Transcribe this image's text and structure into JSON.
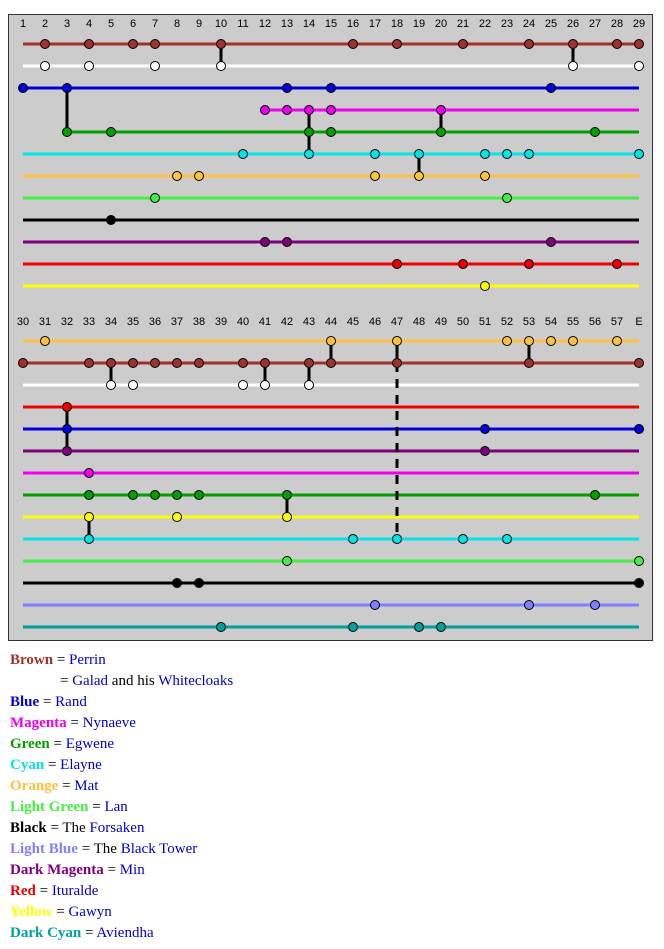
{
  "colors": {
    "Brown": "#a0302a",
    "White": "#ffffff",
    "Blue": "#0000dd",
    "Magenta": "#ee00ee",
    "Green": "#00a000",
    "Cyan": "#00e5e5",
    "Orange": "#ffc040",
    "LightGreen": "#44ee44",
    "Black": "#000000",
    "DarkMagenta": "#800080",
    "Red": "#ee0000",
    "Yellow": "#ffff00",
    "LightBlue": "#7f7fff",
    "DarkCyan": "#00a0a0",
    "Panel": "#cccccc",
    "Link": "#0000cc"
  },
  "panel1": {
    "chapters": [
      "1",
      "2",
      "3",
      "4",
      "5",
      "6",
      "7",
      "8",
      "9",
      "10",
      "11",
      "12",
      "13",
      "14",
      "15",
      "16",
      "17",
      "18",
      "19",
      "20",
      "21",
      "22",
      "23",
      "24",
      "25",
      "26",
      "27",
      "28",
      "29"
    ],
    "tracks": [
      {
        "color": "Brown",
        "points": [
          2,
          4,
          6,
          7,
          10,
          16,
          18,
          21,
          24,
          26,
          28,
          29
        ]
      },
      {
        "color": "White",
        "points": [
          2,
          4,
          7,
          10,
          26,
          29
        ]
      },
      {
        "color": "Blue",
        "start": 1,
        "points": [
          1,
          3,
          13,
          15,
          25
        ]
      },
      {
        "color": "Magenta",
        "start": 12,
        "end": 29,
        "points": [
          12,
          13,
          14,
          15,
          20
        ]
      },
      {
        "color": "Green",
        "start": 3,
        "points": [
          3,
          5,
          14,
          15,
          20,
          27
        ]
      },
      {
        "color": "Cyan",
        "points": [
          11,
          14,
          17,
          19,
          22,
          23,
          24,
          29
        ]
      },
      {
        "color": "Orange",
        "points": [
          8,
          9,
          17,
          19,
          22
        ]
      },
      {
        "color": "LightGreen",
        "points": [
          7,
          23
        ]
      },
      {
        "color": "Black",
        "points": [
          5
        ]
      },
      {
        "color": "DarkMagenta",
        "points": [
          12,
          13,
          25
        ]
      },
      {
        "color": "Red",
        "points": [
          18,
          21,
          24,
          28
        ]
      },
      {
        "color": "Yellow",
        "points": [
          22
        ]
      }
    ],
    "connectors": [
      {
        "chapter": 26,
        "from": 0,
        "to": 1,
        "dashed": false
      },
      {
        "chapter": 10,
        "from": 0,
        "to": 1,
        "dashed": false
      },
      {
        "chapter": 3,
        "from": 2,
        "to": 4,
        "dashed": false
      },
      {
        "chapter": 14,
        "from": 3,
        "to": 5,
        "dashed": false
      },
      {
        "chapter": 20,
        "from": 3,
        "to": 4,
        "dashed": false
      },
      {
        "chapter": 19,
        "from": 5,
        "to": 6,
        "dashed": false
      }
    ]
  },
  "panel2": {
    "chapters": [
      "30",
      "31",
      "32",
      "33",
      "34",
      "35",
      "36",
      "37",
      "38",
      "39",
      "40",
      "41",
      "42",
      "43",
      "44",
      "45",
      "46",
      "47",
      "48",
      "49",
      "50",
      "51",
      "52",
      "53",
      "54",
      "55",
      "56",
      "57",
      "E"
    ],
    "tracks": [
      {
        "color": "Orange",
        "start": 30,
        "points": [
          31,
          44,
          47,
          52,
          53,
          54,
          55,
          57
        ]
      },
      {
        "color": "Brown",
        "start": 30,
        "points": [
          30,
          33,
          34,
          35,
          36,
          37,
          38,
          40,
          41,
          43,
          44,
          47,
          53,
          58
        ]
      },
      {
        "color": "White",
        "start": 30,
        "points": [
          34,
          35,
          40,
          41,
          43
        ]
      },
      {
        "color": "Red",
        "start": 30,
        "points": [
          32
        ]
      },
      {
        "color": "Blue",
        "start": 30,
        "points": [
          32,
          51,
          58
        ]
      },
      {
        "color": "DarkMagenta",
        "start": 30,
        "points": [
          32,
          51
        ]
      },
      {
        "color": "Magenta",
        "start": 30,
        "points": [
          33
        ]
      },
      {
        "color": "Green",
        "start": 30,
        "points": [
          33,
          35,
          36,
          37,
          38,
          42,
          56
        ]
      },
      {
        "color": "Yellow",
        "start": 30,
        "points": [
          33,
          37,
          42
        ]
      },
      {
        "color": "Cyan",
        "start": 30,
        "points": [
          33,
          45,
          47,
          50,
          52
        ]
      },
      {
        "color": "LightGreen",
        "start": 30,
        "points": [
          42,
          58
        ]
      },
      {
        "color": "Black",
        "start": 30,
        "points": [
          37,
          38,
          58
        ]
      },
      {
        "color": "LightBlue",
        "start": 30,
        "points": [
          46,
          53,
          56
        ]
      },
      {
        "color": "DarkCyan",
        "start": 30,
        "points": [
          39,
          45,
          48,
          49
        ]
      }
    ],
    "connectors": [
      {
        "chapter": 34,
        "from": 1,
        "to": 2,
        "dashed": false
      },
      {
        "chapter": 41,
        "from": 1,
        "to": 2,
        "dashed": false
      },
      {
        "chapter": 43,
        "from": 1,
        "to": 2,
        "dashed": false
      },
      {
        "chapter": 44,
        "from": 0,
        "to": 1,
        "dashed": false
      },
      {
        "chapter": 47,
        "from": 0,
        "to": 1,
        "dashed": false
      },
      {
        "chapter": 53,
        "from": 0,
        "to": 1,
        "dashed": false
      },
      {
        "chapter": 47,
        "from": 1,
        "to": 9,
        "dashed": true
      },
      {
        "chapter": 32,
        "from": 3,
        "to": 5,
        "dashed": false
      },
      {
        "chapter": 33,
        "from": 8,
        "to": 9,
        "dashed": false
      },
      {
        "chapter": 42,
        "from": 7,
        "to": 8,
        "dashed": false
      }
    ]
  },
  "legend": [
    {
      "color": "Brown",
      "label": "Brown",
      "eq": " = ",
      "parts": [
        {
          "t": "Perrin",
          "link": true
        }
      ]
    },
    {
      "indent": true,
      "eq": "= ",
      "parts": [
        {
          "t": "Galad",
          "link": true
        },
        {
          "t": " and his ",
          "link": false
        },
        {
          "t": "Whitecloaks",
          "link": true
        }
      ]
    },
    {
      "color": "Blue",
      "label": "Blue",
      "eq": " = ",
      "parts": [
        {
          "t": "Rand",
          "link": true
        }
      ]
    },
    {
      "color": "Magenta",
      "label": "Magenta",
      "eq": " = ",
      "parts": [
        {
          "t": "Nynaeve",
          "link": true
        }
      ]
    },
    {
      "color": "Green",
      "label": "Green",
      "eq": " = ",
      "parts": [
        {
          "t": "Egwene",
          "link": true
        }
      ]
    },
    {
      "color": "Cyan",
      "label": "Cyan",
      "eq": " = ",
      "parts": [
        {
          "t": "Elayne",
          "link": true
        }
      ]
    },
    {
      "color": "Orange",
      "label": "Orange",
      "eq": " = ",
      "parts": [
        {
          "t": "Mat",
          "link": true
        }
      ]
    },
    {
      "color": "LightGreen",
      "label": "Light Green",
      "eq": " = ",
      "parts": [
        {
          "t": "Lan",
          "link": true
        }
      ]
    },
    {
      "color": "Black",
      "label": "Black",
      "eq": " = ",
      "parts": [
        {
          "t": "The ",
          "link": false
        },
        {
          "t": "Forsaken",
          "link": true
        }
      ]
    },
    {
      "color": "LightBlue",
      "label": "Light Blue",
      "eq": " = ",
      "parts": [
        {
          "t": "The ",
          "link": false
        },
        {
          "t": "Black Tower",
          "link": true
        }
      ]
    },
    {
      "color": "DarkMagenta",
      "label": "Dark Magenta",
      "eq": " = ",
      "parts": [
        {
          "t": "Min",
          "link": true
        }
      ]
    },
    {
      "color": "Red",
      "label": "Red",
      "eq": " = ",
      "parts": [
        {
          "t": "Ituralde",
          "link": true
        }
      ]
    },
    {
      "color": "Yellow",
      "label": "Yellow",
      "eq": " = ",
      "parts": [
        {
          "t": "Gawyn",
          "link": true
        }
      ]
    },
    {
      "color": "DarkCyan",
      "label": "Dark Cyan",
      "eq": " = ",
      "parts": [
        {
          "t": "Aviendha",
          "link": true
        }
      ]
    }
  ]
}
